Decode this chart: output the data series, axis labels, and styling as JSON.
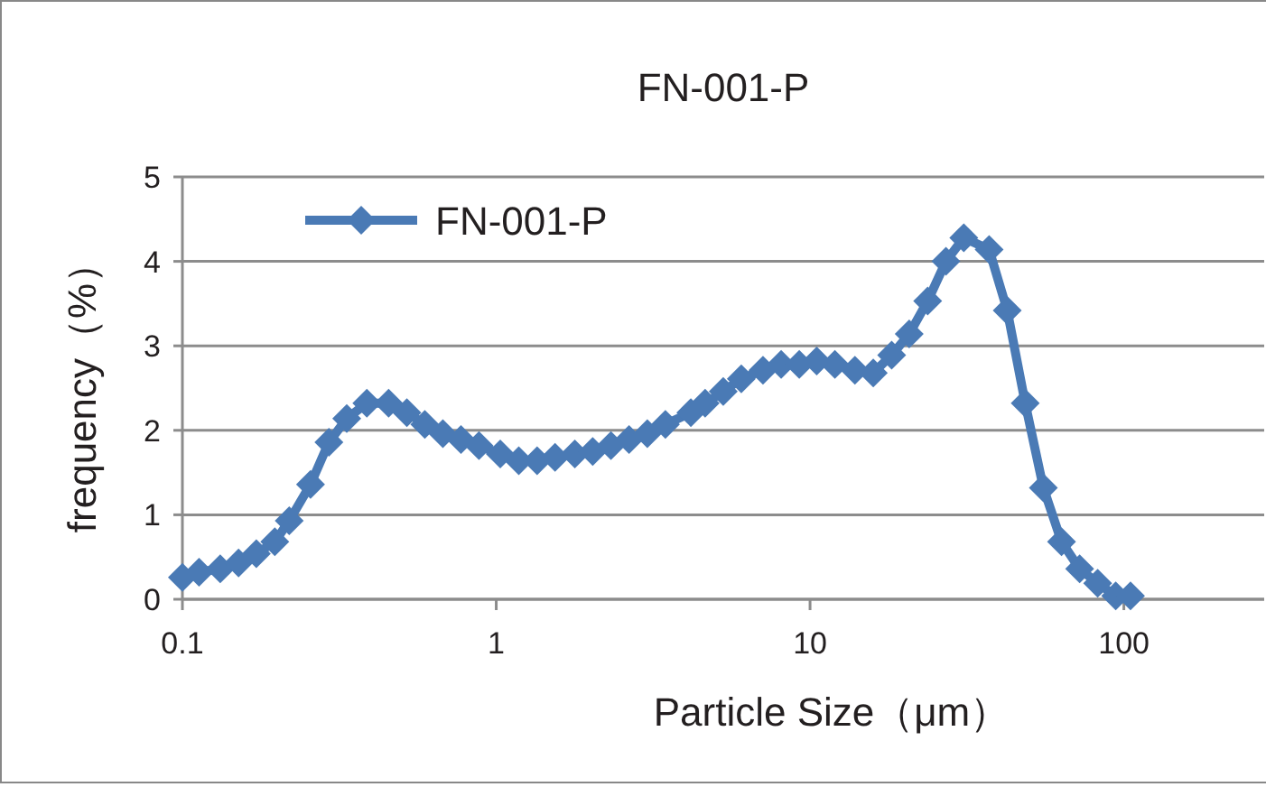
{
  "chart_data": {
    "type": "line",
    "title": "FN-001-P",
    "xlabel": "Particle Size（μm）",
    "ylabel": "frequency（%）",
    "log": "x",
    "xlim": [
      0.1,
      280
    ],
    "xticks": [
      0.1,
      1,
      10,
      100
    ],
    "ylim": [
      0,
      5
    ],
    "yticks": [
      0,
      1,
      2,
      3,
      4,
      5
    ],
    "grid": "y",
    "legend": "top left",
    "marker": "diamond",
    "line_style": "solid",
    "series": [
      {
        "name": "FN-001-P",
        "color": "#4a7ab5",
        "x": [
          0.1,
          0.113,
          0.132,
          0.151,
          0.172,
          0.197,
          0.219,
          0.256,
          0.293,
          0.334,
          0.387,
          0.454,
          0.519,
          0.592,
          0.676,
          0.772,
          0.881,
          1.03,
          1.18,
          1.35,
          1.54,
          1.78,
          2.03,
          2.32,
          2.65,
          3.03,
          3.46,
          4.17,
          4.63,
          5.29,
          6.04,
          7.08,
          8.09,
          9.24,
          10.5,
          12.0,
          13.9,
          15.9,
          18.2,
          20.7,
          23.7,
          27.1,
          30.9,
          37.2,
          42.5,
          48.5,
          55.4,
          63.3,
          72.3,
          82.5,
          94.2,
          105
        ],
        "values": [
          0.26,
          0.32,
          0.36,
          0.43,
          0.54,
          0.68,
          0.93,
          1.36,
          1.86,
          2.14,
          2.32,
          2.32,
          2.21,
          2.07,
          1.96,
          1.89,
          1.82,
          1.72,
          1.64,
          1.64,
          1.68,
          1.72,
          1.75,
          1.82,
          1.89,
          1.96,
          2.07,
          2.21,
          2.32,
          2.46,
          2.61,
          2.71,
          2.78,
          2.78,
          2.82,
          2.78,
          2.71,
          2.68,
          2.89,
          3.14,
          3.53,
          4.0,
          4.28,
          4.14,
          3.42,
          2.32,
          1.32,
          0.68,
          0.36,
          0.19,
          0.04,
          0.04
        ]
      }
    ]
  }
}
